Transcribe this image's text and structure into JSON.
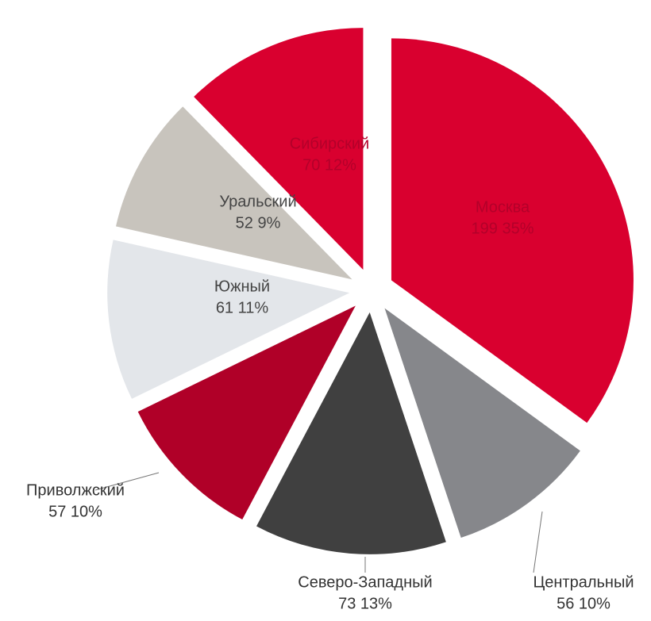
{
  "chart_data": {
    "type": "pie",
    "categories": [
      "Москва",
      "Центральный",
      "Северо-Западный",
      "Приволжский",
      "Южный",
      "Уральский",
      "Сибирский"
    ],
    "values": [
      199,
      56,
      73,
      57,
      61,
      52,
      70
    ],
    "value_labels": [
      "199 35%",
      "56 10%",
      "73 13%",
      "57 10%",
      "61 11%",
      "52 9%",
      "70 12%"
    ],
    "colors": [
      "#d9002f",
      "#86878b",
      "#404040",
      "#b00028",
      "#e3e6ea",
      "#c8c4bd",
      "#d9002f"
    ]
  }
}
